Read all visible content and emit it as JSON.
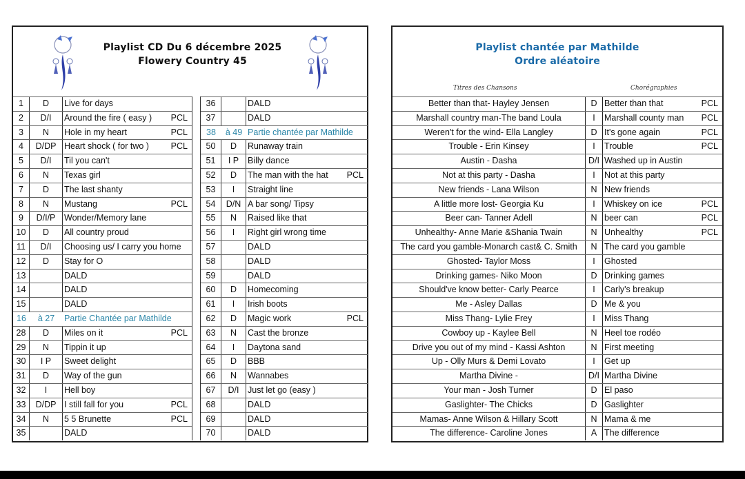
{
  "left": {
    "title_line1": "Playlist CD Du 6 décembre 2025",
    "title_line2": "Flowery Country 45",
    "table_a": [
      {
        "num": "1",
        "level": "D",
        "title": "Live for days",
        "tag": ""
      },
      {
        "num": "2",
        "level": "D/I",
        "title": "Around the fire ( easy )",
        "tag": "PCL"
      },
      {
        "num": "3",
        "level": "N",
        "title": "Hole in my heart",
        "tag": "PCL"
      },
      {
        "num": "4",
        "level": "D/DP",
        "title": "Heart shock ( for two )",
        "tag": "PCL"
      },
      {
        "num": "5",
        "level": "D/I",
        "title": "Til you can't",
        "tag": ""
      },
      {
        "num": "6",
        "level": "N",
        "title": "Texas girl",
        "tag": ""
      },
      {
        "num": "7",
        "level": "D",
        "title": "The last shanty",
        "tag": ""
      },
      {
        "num": "8",
        "level": "N",
        "title": "Mustang",
        "tag": "PCL"
      },
      {
        "num": "9",
        "level": "D/I/P",
        "title": "Wonder/Memory lane",
        "tag": ""
      },
      {
        "num": "10",
        "level": "D",
        "title": "All country proud",
        "tag": ""
      },
      {
        "num": "11",
        "level": "D/I",
        "title": "Choosing us/ I carry you home",
        "tag": ""
      },
      {
        "num": "12",
        "level": "D",
        "title": "Stay for O",
        "tag": ""
      },
      {
        "num": "13",
        "level": "",
        "title": "DALD",
        "tag": ""
      },
      {
        "num": "14",
        "level": "",
        "title": "DALD",
        "tag": ""
      },
      {
        "num": "15",
        "level": "",
        "title": "DALD",
        "tag": ""
      },
      {
        "num": "16",
        "level": "à 27",
        "title": "Partie Chantée par Mathilde",
        "tag": "",
        "special": true
      },
      {
        "num": "28",
        "level": "D",
        "title": "Miles on it",
        "tag": "PCL"
      },
      {
        "num": "29",
        "level": "N",
        "title": "Tippin it up",
        "tag": ""
      },
      {
        "num": "30",
        "level": "I P",
        "title": "Sweet delight",
        "tag": ""
      },
      {
        "num": "31",
        "level": "D",
        "title": "Way of the gun",
        "tag": ""
      },
      {
        "num": "32",
        "level": "I",
        "title": "Hell boy",
        "tag": ""
      },
      {
        "num": "33",
        "level": "D/DP",
        "title": "I still fall for you",
        "tag": "PCL"
      },
      {
        "num": "34",
        "level": "N",
        "title": "5 5 Brunette",
        "tag": "PCL"
      },
      {
        "num": "35",
        "level": "",
        "title": "DALD",
        "tag": ""
      }
    ],
    "table_b": [
      {
        "num": "36",
        "level": "",
        "title": "DALD",
        "tag": ""
      },
      {
        "num": "37",
        "level": "",
        "title": "DALD",
        "tag": ""
      },
      {
        "num": "38",
        "level": "à 49",
        "title": "Partie chantée par Mathilde",
        "tag": "",
        "special": true
      },
      {
        "num": "50",
        "level": "D",
        "title": "Runaway train",
        "tag": ""
      },
      {
        "num": "51",
        "level": "I P",
        "title": "Billy dance",
        "tag": ""
      },
      {
        "num": "52",
        "level": "D",
        "title": "The man with the hat",
        "tag": "PCL"
      },
      {
        "num": "53",
        "level": "I",
        "title": "Straight line",
        "tag": ""
      },
      {
        "num": "54",
        "level": "D/N",
        "title": "A bar song/ Tipsy",
        "tag": ""
      },
      {
        "num": "55",
        "level": "N",
        "title": "Raised like that",
        "tag": ""
      },
      {
        "num": "56",
        "level": "I",
        "title": "Right girl wrong time",
        "tag": ""
      },
      {
        "num": "57",
        "level": "",
        "title": "DALD",
        "tag": ""
      },
      {
        "num": "58",
        "level": "",
        "title": "DALD",
        "tag": ""
      },
      {
        "num": "59",
        "level": "",
        "title": "DALD",
        "tag": ""
      },
      {
        "num": "60",
        "level": "D",
        "title": "Homecoming",
        "tag": ""
      },
      {
        "num": "61",
        "level": "I",
        "title": "Irish boots",
        "tag": ""
      },
      {
        "num": "62",
        "level": "D",
        "title": "Magic work",
        "tag": "PCL"
      },
      {
        "num": "63",
        "level": "N",
        "title": "Cast the bronze",
        "tag": ""
      },
      {
        "num": "64",
        "level": "I",
        "title": "Daytona sand",
        "tag": ""
      },
      {
        "num": "65",
        "level": "D",
        "title": "BBB",
        "tag": ""
      },
      {
        "num": "66",
        "level": "N",
        "title": "Wannabes",
        "tag": ""
      },
      {
        "num": "67",
        "level": "D/I",
        "title": "Just let go (easy )",
        "tag": ""
      },
      {
        "num": "68",
        "level": "",
        "title": "DALD",
        "tag": ""
      },
      {
        "num": "69",
        "level": "",
        "title": "DALD",
        "tag": ""
      },
      {
        "num": "70",
        "level": "",
        "title": "DALD",
        "tag": ""
      }
    ]
  },
  "right": {
    "title_line1": "Playlist  chantée par Mathilde",
    "title_line2": "Ordre aléatoire",
    "col_songs": "Titres des Chansons",
    "col_choreo": "Chorégraphies",
    "rows": [
      {
        "song": "Better than that- Hayley Jensen",
        "level": "D",
        "choreo": "Better than that",
        "tag": "PCL"
      },
      {
        "song": "Marshall country man-The band Loula",
        "level": "I",
        "choreo": "Marshall county man",
        "tag": "PCL"
      },
      {
        "song": "Weren't for the wind- Ella Langley",
        "level": "D",
        "choreo": "It's gone again",
        "tag": "PCL"
      },
      {
        "song": "Trouble - Erin Kinsey",
        "level": "I",
        "choreo": "Trouble",
        "tag": "PCL"
      },
      {
        "song": "Austin - Dasha",
        "level": "D/I",
        "choreo": "Washed up in Austin",
        "tag": ""
      },
      {
        "song": "Not at this party - Dasha",
        "level": "I",
        "choreo": "Not at this party",
        "tag": ""
      },
      {
        "song": "New friends - Lana Wilson",
        "level": "N",
        "choreo": "New friends",
        "tag": ""
      },
      {
        "song": "A little more lost- Georgia Ku",
        "level": "I",
        "choreo": "Whiskey on ice",
        "tag": "PCL"
      },
      {
        "song": "Beer can- Tanner Adell",
        "level": "N",
        "choreo": "beer can",
        "tag": "PCL"
      },
      {
        "song": "Unhealthy- Anne Marie &Shania Twain",
        "level": "N",
        "choreo": "Unhealthy",
        "tag": "PCL"
      },
      {
        "song": "The card you gamble-Monarch cast& C. Smith",
        "level": "N",
        "choreo": "The card you gamble",
        "tag": ""
      },
      {
        "song": "Ghosted- Taylor Moss",
        "level": "I",
        "choreo": "Ghosted",
        "tag": ""
      },
      {
        "song": "Drinking games- Niko Moon",
        "level": "D",
        "choreo": "Drinking games",
        "tag": ""
      },
      {
        "song": "Should've know better- Carly Pearce",
        "level": "I",
        "choreo": "Carly's breakup",
        "tag": ""
      },
      {
        "song": "Me - Asley Dallas",
        "level": "D",
        "choreo": "Me & you",
        "tag": ""
      },
      {
        "song": "Miss Thang- Lylie Frey",
        "level": "I",
        "choreo": "Miss Thang",
        "tag": ""
      },
      {
        "song": "Cowboy up - Kaylee Bell",
        "level": "N",
        "choreo": "Heel toe rodéo",
        "tag": ""
      },
      {
        "song": "Drive you out of my mind - Kassi Ashton",
        "level": "N",
        "choreo": "First meeting",
        "tag": ""
      },
      {
        "song": "Up - Olly Murs & Demi Lovato",
        "level": "I",
        "choreo": "Get up",
        "tag": ""
      },
      {
        "song": "Martha Divine -",
        "level": "D/I",
        "choreo": "Martha Divine",
        "tag": ""
      },
      {
        "song": "Your man - Josh Turner",
        "level": "D",
        "choreo": "El paso",
        "tag": ""
      },
      {
        "song": "Gaslighter- The Chicks",
        "level": "D",
        "choreo": "Gaslighter",
        "tag": ""
      },
      {
        "song": "Mamas- Anne Wilson & Hillary Scott",
        "level": "N",
        "choreo": "Mama & me",
        "tag": ""
      },
      {
        "song": "The  difference- Caroline Jones",
        "level": "A",
        "choreo": "The difference",
        "tag": ""
      }
    ]
  },
  "colors": {
    "title_blue": "#1a6aa8",
    "special_row": "#2b86a8",
    "dreamcatcher": "#3a4fb0"
  }
}
